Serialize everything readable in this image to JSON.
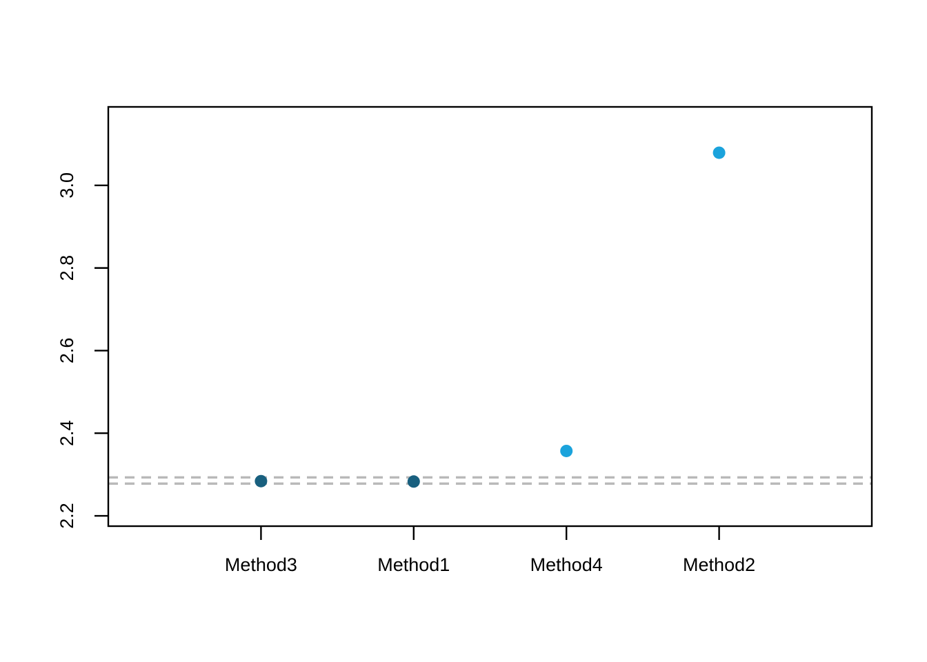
{
  "figure": {
    "background": "#ffffff",
    "description": "Scatter plot comparing four methods against a dashed reference band"
  },
  "chart_data": {
    "type": "scatter",
    "title": "",
    "xlabel": "",
    "ylabel": "",
    "categories": [
      "Method3",
      "Method1",
      "Method4",
      "Method2"
    ],
    "values": [
      2.284,
      2.283,
      2.357,
      3.079
    ],
    "point_colors": [
      "#19607F",
      "#19607F",
      "#1BA3DC",
      "#1BA3DC"
    ],
    "point_color_dark": "#19607F",
    "point_color_light": "#1BA3DC",
    "reference_lines": {
      "values": [
        2.278,
        2.293
      ],
      "color": "#B9B9B9",
      "style": "dashed"
    },
    "ylim": [
      2.175,
      3.19
    ],
    "yticks": [
      2.2,
      2.4,
      2.6,
      2.8,
      3.0
    ],
    "ytick_labels": [
      "2.2",
      "2.4",
      "2.6",
      "2.8",
      "3.0"
    ],
    "grid": false,
    "legend": null,
    "axis_color": "#000000",
    "tick_label_color": "#000000",
    "plot_border": "box"
  }
}
